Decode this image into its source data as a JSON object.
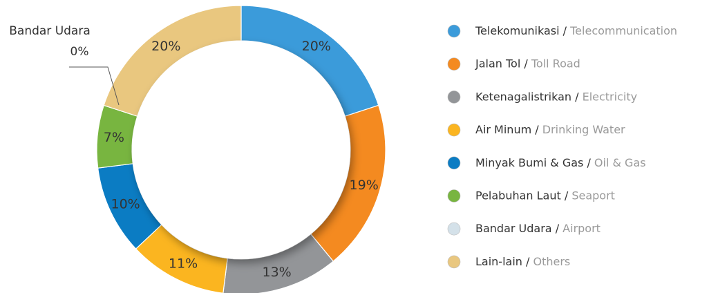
{
  "chart_data": {
    "type": "pie",
    "categories": [
      "Telekomunikasi",
      "Jalan Tol",
      "Ketenagalistrikan",
      "Air Minum",
      "Minyak Bumi & Gas",
      "Pelabuhan Laut",
      "Bandar Udara",
      "Lain-lain"
    ],
    "categories_en": [
      "Telecommunication",
      "Toll Road",
      "Electricity",
      "Drinking Water",
      "Oil & Gas",
      "Seaport",
      "Airport",
      "Others"
    ],
    "values": [
      20,
      19,
      13,
      11,
      10,
      7,
      0,
      20
    ],
    "value_labels": [
      "20%",
      "19%",
      "13%",
      "11%",
      "10%",
      "7%",
      "0%",
      "20%"
    ],
    "colors": [
      "#3b9bda",
      "#f48a20",
      "#939598",
      "#fbb520",
      "#0b7cc3",
      "#78b540",
      "#d4e1e9",
      "#e9c77f"
    ],
    "donut": true
  }
}
